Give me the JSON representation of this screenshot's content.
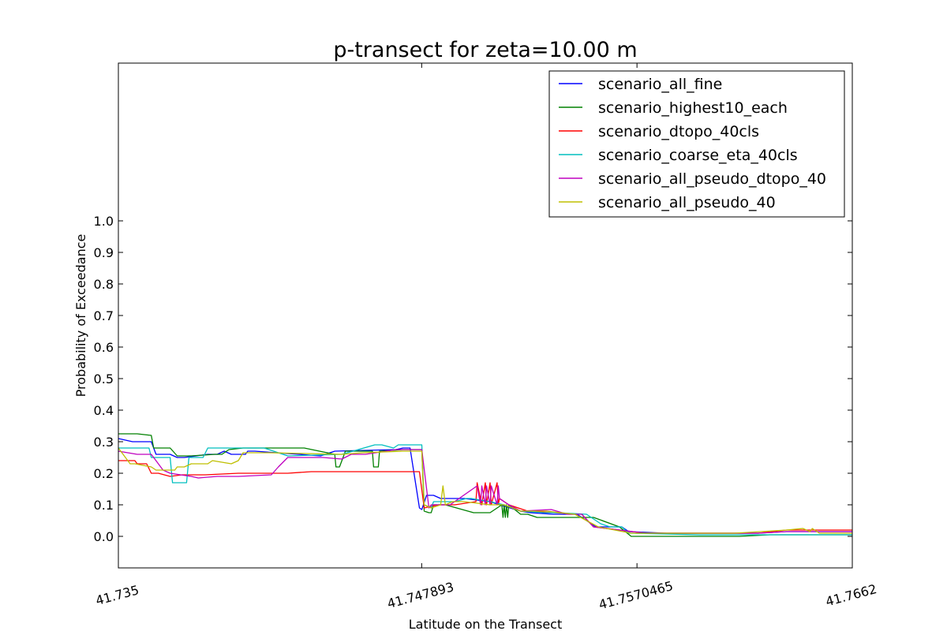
{
  "chart_data": {
    "type": "line",
    "title": "p-transect for zeta=10.00 m",
    "xlabel": "Latitude on the Transect",
    "ylabel": "Probability of Exceedance",
    "xlim": [
      41.735,
      41.7662
    ],
    "ylim": [
      -0.1,
      1.5
    ],
    "xticks": [
      41.735,
      41.747893,
      41.7570465,
      41.7662
    ],
    "xtick_labels": [
      "41.735",
      "41.747893",
      "41.7570465",
      "41.7662"
    ],
    "yticks": [
      0.0,
      0.1,
      0.2,
      0.3,
      0.4,
      0.5,
      0.6,
      0.7,
      0.8,
      0.9,
      1.0
    ],
    "ytick_labels": [
      "0.0",
      "0.1",
      "0.2",
      "0.3",
      "0.4",
      "0.5",
      "0.6",
      "0.7",
      "0.8",
      "0.9",
      "1.0"
    ],
    "grid": false,
    "legend_position": "top-right",
    "series": [
      {
        "name": "scenario_all_fine",
        "color": "#0000ff",
        "x": [
          41.735,
          41.7356,
          41.7364,
          41.7366,
          41.7372,
          41.7375,
          41.7378,
          41.7388,
          41.7392,
          41.7395,
          41.7398,
          41.7404,
          41.7405,
          41.7408,
          41.7436,
          41.7438,
          41.7442,
          41.7468,
          41.7471,
          41.7474,
          41.7478,
          41.7479,
          41.7481,
          41.7484,
          41.7487,
          41.7493,
          41.7497,
          41.7508,
          41.7512,
          41.7521,
          41.7525,
          41.7535,
          41.7545,
          41.7546,
          41.7553,
          41.7564,
          41.7567,
          41.7583,
          41.7622,
          41.7634,
          41.7648,
          41.7662
        ],
        "y": [
          0.31,
          0.3,
          0.3,
          0.26,
          0.26,
          0.25,
          0.25,
          0.26,
          0.26,
          0.27,
          0.26,
          0.26,
          0.27,
          0.27,
          0.255,
          0.26,
          0.27,
          0.275,
          0.28,
          0.28,
          0.09,
          0.085,
          0.13,
          0.13,
          0.12,
          0.12,
          0.12,
          0.11,
          0.1,
          0.08,
          0.075,
          0.07,
          0.07,
          0.065,
          0.03,
          0.03,
          0.015,
          0.01,
          0.01,
          0.015,
          0.015,
          0.015
        ]
      },
      {
        "name": "scenario_highest10_each",
        "color": "#008000",
        "x": [
          41.735,
          41.7358,
          41.7364,
          41.7365,
          41.7372,
          41.7375,
          41.7381,
          41.7391,
          41.7394,
          41.7397,
          41.7403,
          41.7429,
          41.7442,
          41.74425,
          41.7444,
          41.7446,
          41.74465,
          41.7451,
          41.7458,
          41.74585,
          41.74605,
          41.7461,
          41.7471,
          41.7479,
          41.748,
          41.7482,
          41.7483,
          41.7484,
          41.7489,
          41.7501,
          41.7502,
          41.7504,
          41.7508,
          41.7512,
          41.7513,
          41.75135,
          41.7514,
          41.75145,
          41.7515,
          41.75155,
          41.7516,
          41.7521,
          41.7524,
          41.7528,
          41.7529,
          41.7552,
          41.7563,
          41.7568,
          41.759,
          41.7614,
          41.7627,
          41.7635,
          41.7648,
          41.7662
        ],
        "y": [
          0.325,
          0.325,
          0.32,
          0.28,
          0.28,
          0.255,
          0.255,
          0.26,
          0.26,
          0.275,
          0.28,
          0.28,
          0.26,
          0.22,
          0.22,
          0.26,
          0.27,
          0.27,
          0.27,
          0.22,
          0.22,
          0.27,
          0.275,
          0.275,
          0.08,
          0.075,
          0.075,
          0.1,
          0.1,
          0.075,
          0.075,
          0.075,
          0.075,
          0.095,
          0.1,
          0.06,
          0.1,
          0.06,
          0.1,
          0.06,
          0.1,
          0.07,
          0.07,
          0.06,
          0.06,
          0.06,
          0.03,
          0.0,
          0.0,
          0.0,
          0.005,
          0.005,
          0.005,
          0.005
        ]
      },
      {
        "name": "scenario_dtopo_40cls",
        "color": "#ff0000",
        "x": [
          41.735,
          41.7357,
          41.7358,
          41.7362,
          41.7364,
          41.7367,
          41.7372,
          41.7377,
          41.7387,
          41.7401,
          41.7422,
          41.7432,
          41.7438,
          41.7443,
          41.7478,
          41.748,
          41.7486,
          41.7493,
          41.7502,
          41.75025,
          41.75045,
          41.7506,
          41.75065,
          41.7508,
          41.75085,
          41.7511,
          41.75115,
          41.7512,
          41.7516,
          41.7524,
          41.7547,
          41.7552,
          41.7574,
          41.7612,
          41.7622,
          41.7634,
          41.7648,
          41.7662
        ],
        "y": [
          0.24,
          0.24,
          0.23,
          0.23,
          0.2,
          0.2,
          0.19,
          0.195,
          0.195,
          0.2,
          0.2,
          0.205,
          0.205,
          0.205,
          0.205,
          0.09,
          0.1,
          0.1,
          0.11,
          0.17,
          0.1,
          0.17,
          0.1,
          0.17,
          0.1,
          0.17,
          0.1,
          0.12,
          0.1,
          0.08,
          0.07,
          0.03,
          0.01,
          0.01,
          0.01,
          0.02,
          0.02,
          0.02
        ]
      },
      {
        "name": "scenario_coarse_eta_40cls",
        "color": "#00bfbf",
        "x": [
          41.735,
          41.7363,
          41.7364,
          41.7372,
          41.7373,
          41.7379,
          41.738,
          41.7386,
          41.7388,
          41.7396,
          41.7412,
          41.7422,
          41.7445,
          41.7459,
          41.7462,
          41.7467,
          41.7469,
          41.7479,
          41.748,
          41.7483,
          41.7484,
          41.7493,
          41.7498,
          41.75,
          41.7508,
          41.7514,
          41.7521,
          41.7531,
          41.7537,
          41.7549,
          41.7555,
          41.7559,
          41.7564,
          41.7567,
          41.7597,
          41.7634,
          41.7648,
          41.7662
        ],
        "y": [
          0.28,
          0.28,
          0.25,
          0.25,
          0.17,
          0.17,
          0.25,
          0.25,
          0.28,
          0.28,
          0.28,
          0.255,
          0.26,
          0.29,
          0.29,
          0.28,
          0.29,
          0.29,
          0.1,
          0.09,
          0.11,
          0.11,
          0.12,
          0.12,
          0.11,
          0.1,
          0.08,
          0.075,
          0.075,
          0.07,
          0.04,
          0.03,
          0.03,
          0.01,
          0.005,
          0.005,
          0.005,
          0.005
        ]
      },
      {
        "name": "scenario_all_pseudo_dtopo_40",
        "color": "#bf00bf",
        "x": [
          41.735,
          41.7358,
          41.7364,
          41.7369,
          41.7372,
          41.7381,
          41.7384,
          41.7392,
          41.7401,
          41.7415,
          41.7418,
          41.7422,
          41.7437,
          41.7445,
          41.7449,
          41.7455,
          41.7468,
          41.7479,
          41.7482,
          41.7483,
          41.7491,
          41.75025,
          41.7504,
          41.75045,
          41.7506,
          41.75065,
          41.7508,
          41.75085,
          41.7511,
          41.75115,
          41.7512,
          41.7516,
          41.7521,
          41.7534,
          41.7541,
          41.7547,
          41.7552,
          41.7574,
          41.7612,
          41.7622,
          41.7634,
          41.7648,
          41.7662
        ],
        "y": [
          0.27,
          0.26,
          0.26,
          0.21,
          0.2,
          0.19,
          0.185,
          0.19,
          0.19,
          0.195,
          0.22,
          0.25,
          0.25,
          0.245,
          0.26,
          0.26,
          0.275,
          0.275,
          0.09,
          0.1,
          0.1,
          0.16,
          0.1,
          0.16,
          0.1,
          0.16,
          0.1,
          0.16,
          0.1,
          0.16,
          0.12,
          0.1,
          0.08,
          0.085,
          0.07,
          0.07,
          0.03,
          0.01,
          0.01,
          0.01,
          0.015,
          0.015,
          0.015
        ]
      },
      {
        "name": "scenario_all_pseudo_40",
        "color": "#bfbf00",
        "x": [
          41.735,
          41.7355,
          41.7357,
          41.7364,
          41.7366,
          41.7367,
          41.7374,
          41.7375,
          41.7378,
          41.7381,
          41.7388,
          41.739,
          41.7398,
          41.7401,
          41.7403,
          41.7414,
          41.7445,
          41.7454,
          41.7471,
          41.7479,
          41.748,
          41.7483,
          41.7487,
          41.7488,
          41.7489,
          41.7492,
          41.7497,
          41.7508,
          41.7514,
          41.7521,
          41.7532,
          41.7544,
          41.7554,
          41.7568,
          41.7612,
          41.7634,
          41.7641,
          41.7644,
          41.7645,
          41.7648,
          41.7662
        ],
        "y": [
          0.28,
          0.23,
          0.23,
          0.22,
          0.21,
          0.21,
          0.21,
          0.22,
          0.22,
          0.23,
          0.23,
          0.24,
          0.23,
          0.24,
          0.265,
          0.265,
          0.26,
          0.265,
          0.27,
          0.27,
          0.1,
          0.09,
          0.1,
          0.16,
          0.1,
          0.11,
          0.11,
          0.1,
          0.1,
          0.08,
          0.08,
          0.07,
          0.03,
          0.01,
          0.01,
          0.02,
          0.025,
          0.015,
          0.025,
          0.01,
          0.01
        ]
      }
    ]
  }
}
